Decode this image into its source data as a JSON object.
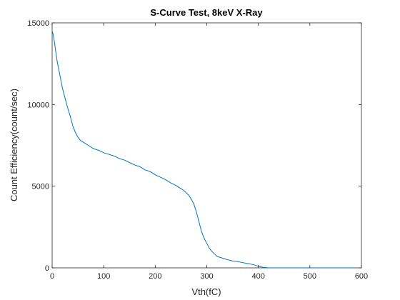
{
  "chart_data": {
    "type": "line",
    "title": "S-Curve Test, 8keV X-Ray",
    "xlabel": "Vth(fC)",
    "ylabel": "Count Efficiency(count/sec)",
    "xlim": [
      0,
      600
    ],
    "ylim": [
      0,
      15000
    ],
    "xticks": [
      0,
      100,
      200,
      300,
      400,
      500,
      600
    ],
    "yticks": [
      0,
      5000,
      10000,
      15000
    ],
    "xtick_labels": [
      "0",
      "100",
      "200",
      "300",
      "400",
      "500",
      "600"
    ],
    "ytick_labels": [
      "0",
      "5000",
      "10000",
      "15000"
    ],
    "grid": false,
    "series": [
      {
        "color": "#0072BD",
        "x": [
          0,
          2,
          5,
          8,
          10,
          15,
          20,
          25,
          30,
          35,
          40,
          45,
          50,
          55,
          60,
          65,
          70,
          80,
          90,
          100,
          110,
          120,
          130,
          140,
          150,
          160,
          170,
          180,
          190,
          200,
          210,
          220,
          230,
          240,
          250,
          255,
          260,
          265,
          270,
          275,
          280,
          285,
          290,
          295,
          300,
          305,
          310,
          315,
          320,
          330,
          340,
          350,
          360,
          370,
          380,
          390,
          400,
          410,
          420,
          430,
          450,
          500,
          550,
          585
        ],
        "y": [
          14500,
          14300,
          13700,
          13000,
          12600,
          11800,
          11000,
          10400,
          9800,
          9300,
          8700,
          8300,
          8000,
          7800,
          7700,
          7600,
          7500,
          7300,
          7200,
          7050,
          6950,
          6850,
          6700,
          6600,
          6450,
          6300,
          6200,
          6000,
          5900,
          5700,
          5550,
          5400,
          5200,
          5050,
          4850,
          4750,
          4600,
          4450,
          4200,
          3900,
          3400,
          2800,
          2200,
          1800,
          1500,
          1200,
          1000,
          850,
          700,
          600,
          500,
          420,
          380,
          320,
          260,
          200,
          100,
          30,
          0,
          0,
          0,
          0,
          0,
          0
        ]
      }
    ]
  }
}
